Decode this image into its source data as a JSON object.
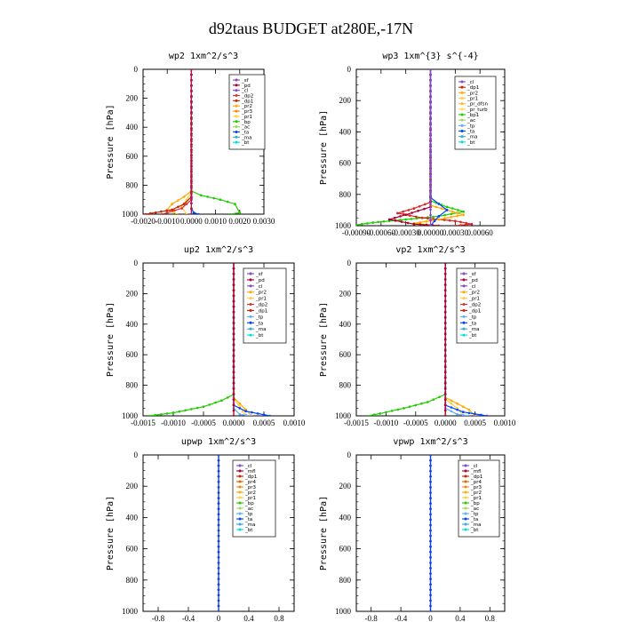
{
  "title": "d92taus  BUDGET at280E,-17N",
  "chart_data": [
    {
      "type": "line",
      "title": "wp2  1xm^2/s^3",
      "ylabel": "Pressure [hPa]",
      "xlim": [
        -0.002,
        0.003
      ],
      "ylim": [
        0,
        1000
      ],
      "xticks": [
        -0.002,
        -0.001,
        0.0,
        0.001,
        0.002,
        0.003
      ],
      "xtick_labels": [
        "-0.0020",
        "-0.0010",
        "0.0000",
        "0.0010",
        "0.0020",
        "0.0030"
      ],
      "yticks": [
        0,
        200,
        400,
        600,
        800,
        1000
      ],
      "legend": [
        "_sf",
        "_pd",
        "_cl",
        "_dp2",
        "_dp1",
        "_pr2",
        "_pr3",
        "_pr1",
        "_bp",
        "_ac",
        "_ta",
        "_ma",
        "_bt"
      ],
      "series": [
        {
          "name": "_bp",
          "color": "#22cc00",
          "points": [
            [
              0,
              0
            ],
            [
              0,
              840
            ],
            [
              0.0004,
              870
            ],
            [
              0.0012,
              900
            ],
            [
              0.0018,
              930
            ],
            [
              0.002,
              990
            ],
            [
              0.0016,
              1000
            ]
          ]
        },
        {
          "name": "_pr3",
          "color": "#ffaa00",
          "points": [
            [
              0,
              0
            ],
            [
              0,
              840
            ],
            [
              -0.0003,
              880
            ],
            [
              -0.0008,
              930
            ],
            [
              -0.001,
              970
            ],
            [
              -0.0006,
              1000
            ]
          ]
        },
        {
          "name": "_pr2",
          "color": "#ffcc44",
          "points": [
            [
              0,
              0
            ],
            [
              0,
              850
            ],
            [
              -0.0002,
              900
            ],
            [
              -0.0004,
              950
            ],
            [
              -0.0002,
              1000
            ]
          ]
        },
        {
          "name": "_dp1",
          "color": "#cc2200",
          "points": [
            [
              0,
              0
            ],
            [
              0,
              880
            ],
            [
              -0.0003,
              930
            ],
            [
              -0.0008,
              970
            ],
            [
              -0.0017,
              995
            ],
            [
              -0.0019,
              1000
            ]
          ]
        },
        {
          "name": "_dp2",
          "color": "#dd3333",
          "points": [
            [
              0,
              0
            ],
            [
              0,
              900
            ],
            [
              -0.0004,
              960
            ],
            [
              -0.001,
              990
            ],
            [
              -0.0012,
              1000
            ]
          ]
        },
        {
          "name": "_ta",
          "color": "#0044ff",
          "points": [
            [
              0,
              0
            ],
            [
              0,
              960
            ],
            [
              0.0001,
              990
            ],
            [
              0.0003,
              1000
            ]
          ]
        },
        {
          "name": "_sf",
          "color": "#8844cc",
          "points": [
            [
              0,
              0
            ],
            [
              0,
              1000
            ]
          ]
        },
        {
          "name": "_pd",
          "color": "#bb1144",
          "points": [
            [
              0,
              0
            ],
            [
              0,
              1000
            ]
          ]
        }
      ]
    },
    {
      "type": "line",
      "title": "wp3  1xm^{3} s^{-4}",
      "ylabel": "Pressure [hPa]",
      "xlim": [
        -0.0009,
        0.0009
      ],
      "ylim": [
        0,
        1000
      ],
      "xticks": [
        -0.0009,
        -0.0006,
        -0.0003,
        0.0,
        0.0003,
        0.0006
      ],
      "xtick_labels": [
        "-0.00090",
        "-0.00060",
        "-0.00030",
        "0.00000",
        "0.00030",
        "0.00060"
      ],
      "yticks": [
        0,
        200,
        400,
        600,
        800,
        1000
      ],
      "legend": [
        "_cl",
        "_dp1",
        "_pr2",
        "_pr1",
        "_pr_dfsn",
        "_pr_turb",
        "_bp1",
        "_ac",
        "_tp",
        "_ta",
        "_ma",
        "_bt"
      ],
      "series": [
        {
          "name": "_bp1",
          "color": "#22cc00",
          "points": [
            [
              0,
              0
            ],
            [
              0,
              840
            ],
            [
              0.0002,
              880
            ],
            [
              0.0004,
              910
            ],
            [
              0.0001,
              940
            ],
            [
              -0.0003,
              960
            ],
            [
              -0.0007,
              980
            ],
            [
              -0.0009,
              995
            ]
          ]
        },
        {
          "name": "_pr1",
          "color": "#dd2222",
          "points": [
            [
              0,
              0
            ],
            [
              0,
              850
            ],
            [
              -0.0002,
              890
            ],
            [
              -0.0004,
              920
            ],
            [
              -0.0001,
              950
            ],
            [
              0.0003,
              970
            ],
            [
              0.0005,
              990
            ],
            [
              0.0003,
              1000
            ]
          ]
        },
        {
          "name": "_pr2",
          "color": "#ffaa00",
          "points": [
            [
              0,
              0
            ],
            [
              0,
              870
            ],
            [
              0.0002,
              900
            ],
            [
              0.0004,
              930
            ],
            [
              0.0001,
              960
            ],
            [
              -0.0002,
              985
            ],
            [
              0.0001,
              1000
            ]
          ]
        },
        {
          "name": "_dp1",
          "color": "#aa0033",
          "points": [
            [
              0,
              0
            ],
            [
              0,
              880
            ],
            [
              -0.0003,
              930
            ],
            [
              -0.0005,
              960
            ],
            [
              -0.0002,
              990
            ],
            [
              0.0001,
              1000
            ]
          ]
        },
        {
          "name": "_ta",
          "color": "#0044ff",
          "points": [
            [
              0,
              0
            ],
            [
              0,
              820
            ],
            [
              0.0001,
              860
            ],
            [
              0.0002,
              900
            ],
            [
              0.0001,
              940
            ],
            [
              0,
              1000
            ]
          ]
        },
        {
          "name": "_cl",
          "color": "#8844cc",
          "points": [
            [
              0,
              0
            ],
            [
              0,
              1000
            ]
          ]
        }
      ]
    },
    {
      "type": "line",
      "title": "up2  1xm^2/s^3",
      "ylabel": "Pressure [hPa]",
      "xlim": [
        -0.0015,
        0.001
      ],
      "ylim": [
        0,
        1000
      ],
      "xticks": [
        -0.0015,
        -0.001,
        -0.0005,
        0.0,
        0.0005,
        0.001
      ],
      "xtick_labels": [
        "-0.0015",
        "-0.0010",
        "-0.0005",
        "0.0000",
        "0.0005",
        "0.0010"
      ],
      "yticks": [
        0,
        200,
        400,
        600,
        800,
        1000
      ],
      "legend": [
        "_sf",
        "_pd",
        "_cl",
        "_pr2",
        "_pr1",
        "_dp2",
        "_dp1",
        "_tp",
        "_ta",
        "_ma",
        "_bt"
      ],
      "series": [
        {
          "name": "_dp1",
          "color": "#22cc00",
          "points": [
            [
              0,
              0
            ],
            [
              0,
              860
            ],
            [
              -0.0002,
              900
            ],
            [
              -0.0005,
              940
            ],
            [
              -0.001,
              980
            ],
            [
              -0.0014,
              1000
            ]
          ]
        },
        {
          "name": "_pr1",
          "color": "#ffaa00",
          "points": [
            [
              0,
              0
            ],
            [
              0,
              880
            ],
            [
              0.0001,
              920
            ],
            [
              0.0002,
              960
            ],
            [
              0.0003,
              1000
            ]
          ]
        },
        {
          "name": "_pr2",
          "color": "#ffcc44",
          "points": [
            [
              0,
              0
            ],
            [
              0,
              890
            ],
            [
              0.0001,
              940
            ],
            [
              0.0002,
              1000
            ]
          ]
        },
        {
          "name": "_ta",
          "color": "#0044ff",
          "points": [
            [
              0,
              0
            ],
            [
              0,
              930
            ],
            [
              0.0002,
              970
            ],
            [
              0.0006,
              1000
            ]
          ]
        },
        {
          "name": "_tp",
          "color": "#66aaff",
          "points": [
            [
              0,
              0
            ],
            [
              0,
              950
            ],
            [
              0.0001,
              990
            ],
            [
              0.0003,
              1000
            ]
          ]
        },
        {
          "name": "_cl",
          "color": "#dd2222",
          "points": [
            [
              0,
              0
            ],
            [
              0,
              1000
            ]
          ]
        },
        {
          "name": "_pd",
          "color": "#aa0033",
          "points": [
            [
              0,
              0
            ],
            [
              0,
              1000
            ]
          ]
        }
      ]
    },
    {
      "type": "line",
      "title": "vp2  1xm^2/s^3",
      "ylabel": "Pressure [hPa]",
      "xlim": [
        -0.0015,
        0.001
      ],
      "ylim": [
        0,
        1000
      ],
      "xticks": [
        -0.0015,
        -0.001,
        -0.0005,
        0.0,
        0.0005,
        0.001
      ],
      "xtick_labels": [
        "-0.0015",
        "-0.0010",
        "-0.0005",
        "0.0000",
        "0.0005",
        "0.0010"
      ],
      "yticks": [
        0,
        200,
        400,
        600,
        800,
        1000
      ],
      "legend": [
        "_sf",
        "_pd",
        "_cl",
        "_pr2",
        "_pr1",
        "_dp2",
        "_dp1",
        "_tp",
        "_ta",
        "_ma",
        "_bt"
      ],
      "series": [
        {
          "name": "_dp1",
          "color": "#22cc00",
          "points": [
            [
              0,
              0
            ],
            [
              0,
              860
            ],
            [
              -0.0003,
              910
            ],
            [
              -0.0007,
              950
            ],
            [
              -0.0011,
              985
            ],
            [
              -0.0013,
              1000
            ]
          ]
        },
        {
          "name": "_pr1",
          "color": "#ffaa00",
          "points": [
            [
              0,
              0
            ],
            [
              0,
              880
            ],
            [
              0.0002,
              920
            ],
            [
              0.0004,
              960
            ],
            [
              0.0005,
              1000
            ]
          ]
        },
        {
          "name": "_pr2",
          "color": "#ffcc44",
          "points": [
            [
              0,
              0
            ],
            [
              0,
              890
            ],
            [
              0.0002,
              950
            ],
            [
              0.0003,
              1000
            ]
          ]
        },
        {
          "name": "_ta",
          "color": "#0044ff",
          "points": [
            [
              0,
              0
            ],
            [
              0,
              930
            ],
            [
              0.0003,
              975
            ],
            [
              0.0007,
              1000
            ]
          ]
        },
        {
          "name": "_tp",
          "color": "#66aaff",
          "points": [
            [
              0,
              0
            ],
            [
              0,
              950
            ],
            [
              0.0002,
              990
            ],
            [
              0.0004,
              1000
            ]
          ]
        },
        {
          "name": "_cl",
          "color": "#dd2222",
          "points": [
            [
              0,
              0
            ],
            [
              0,
              1000
            ]
          ]
        },
        {
          "name": "_pd",
          "color": "#aa0033",
          "points": [
            [
              0,
              0
            ],
            [
              0,
              1000
            ]
          ]
        }
      ]
    },
    {
      "type": "line",
      "title": "upwp  1xm^2/s^3",
      "ylabel": "Pressure [hPa]",
      "xlim": [
        -1.0,
        1.0
      ],
      "ylim": [
        0,
        1000
      ],
      "xticks": [
        -0.8,
        -0.4,
        0.0,
        0.4,
        0.8
      ],
      "xtick_labels": [
        "-0.8",
        "-0.4",
        "0",
        "0.4",
        "0.8"
      ],
      "yticks": [
        0,
        200,
        400,
        600,
        800,
        1000
      ],
      "legend": [
        "_cl",
        "_mfl",
        "_dp1",
        "_pr4",
        "_pr3",
        "_pr2",
        "_pr1",
        "_bp",
        "_ac",
        "_tp",
        "_ta",
        "_ma",
        "_bt"
      ],
      "series": [
        {
          "name": "_mfl",
          "color": "#aa0033",
          "points": [
            [
              0,
              0
            ],
            [
              0,
              1000
            ]
          ]
        },
        {
          "name": "_ta",
          "color": "#0044ff",
          "points": [
            [
              0,
              0
            ],
            [
              0,
              1000
            ]
          ]
        }
      ]
    },
    {
      "type": "line",
      "title": "vpwp  1xm^2/s^3",
      "ylabel": "Pressure [hPa]",
      "xlim": [
        -1.0,
        1.0
      ],
      "ylim": [
        0,
        1000
      ],
      "xticks": [
        -0.8,
        -0.4,
        0.0,
        0.4,
        0.8
      ],
      "xtick_labels": [
        "-0.8",
        "-0.4",
        "0",
        "0.4",
        "0.8"
      ],
      "yticks": [
        0,
        200,
        400,
        600,
        800,
        1000
      ],
      "legend": [
        "_cl",
        "_mfl",
        "_dp1",
        "_pr4",
        "_pr3",
        "_pr2",
        "_pr1",
        "_bp",
        "_ac",
        "_tp",
        "_ta",
        "_ma",
        "_bt"
      ],
      "series": [
        {
          "name": "_mfl",
          "color": "#aa0033",
          "points": [
            [
              0,
              0
            ],
            [
              0,
              1000
            ]
          ]
        },
        {
          "name": "_ta",
          "color": "#0044ff",
          "points": [
            [
              0,
              0
            ],
            [
              0,
              1000
            ]
          ]
        }
      ]
    }
  ],
  "legend_colors": {
    "_sf": "#8844cc",
    "_pd": "#aa0033",
    "_cl": "#8844cc",
    "_mfl": "#aa0033",
    "_dp2": "#dd3333",
    "_dp1": "#cc2200",
    "_pr4": "#dd6600",
    "_pr3": "#ff8800",
    "_pr2": "#ffaa00",
    "_pr1": "#ffcc44",
    "_pr_dfsn": "#ffbb22",
    "_pr_turb": "#ffdd55",
    "_bp": "#22cc00",
    "_bp1": "#22cc00",
    "_ac": "#99dd55",
    "_tp": "#66aaff",
    "_ta": "#0044ff",
    "_ma": "#33aadd",
    "_bt": "#00dddd"
  }
}
